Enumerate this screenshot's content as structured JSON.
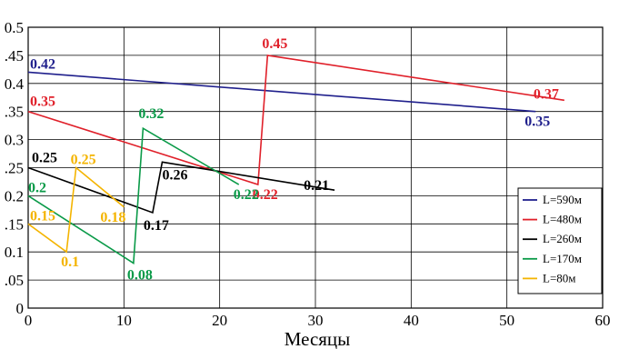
{
  "chart_data": {
    "type": "line",
    "title": "",
    "xlabel": "Месяцы",
    "ylabel": "",
    "xlim": [
      0,
      60
    ],
    "ylim": [
      0,
      0.5
    ],
    "x_ticks": [
      "0",
      "10",
      "20",
      "30",
      "40",
      "50",
      "60"
    ],
    "y_ticks": [
      "0",
      ".05",
      "0.1",
      ".15",
      "0.2",
      ".25",
      "0.3",
      ".35",
      "0.4",
      ".45",
      "0.5"
    ],
    "grid": true,
    "legend_position": "bottom-right",
    "series": [
      {
        "name": "L=590м",
        "color": "#1f1f8c",
        "points": [
          {
            "x": 0,
            "y": 0.42
          },
          {
            "x": 53,
            "y": 0.35
          }
        ],
        "labels": [
          {
            "text": "0.42",
            "x": 0,
            "y": 0.42
          },
          {
            "text": "0.35",
            "x": 53,
            "y": 0.35
          }
        ]
      },
      {
        "name": "L=480м",
        "color": "#e0202a",
        "points": [
          {
            "x": 0,
            "y": 0.35
          },
          {
            "x": 24,
            "y": 0.22
          },
          {
            "x": 25,
            "y": 0.45
          },
          {
            "x": 56,
            "y": 0.37
          }
        ],
        "labels": [
          {
            "text": "0.35",
            "x": 0,
            "y": 0.35
          },
          {
            "text": "0.22",
            "x": 24,
            "y": 0.22
          },
          {
            "text": "0.45",
            "x": 25,
            "y": 0.45
          },
          {
            "text": "0.37",
            "x": 56,
            "y": 0.37
          }
        ]
      },
      {
        "name": "L=260м",
        "color": "#000000",
        "points": [
          {
            "x": 0,
            "y": 0.25
          },
          {
            "x": 13,
            "y": 0.17
          },
          {
            "x": 14,
            "y": 0.26
          },
          {
            "x": 32,
            "y": 0.21
          }
        ],
        "labels": [
          {
            "text": "0.25",
            "x": 0,
            "y": 0.25
          },
          {
            "text": "0.17",
            "x": 13,
            "y": 0.17
          },
          {
            "text": "0.26",
            "x": 14,
            "y": 0.26
          },
          {
            "text": "0.21",
            "x": 32,
            "y": 0.21
          }
        ]
      },
      {
        "name": "L=170м",
        "color": "#0a9a48",
        "points": [
          {
            "x": 0,
            "y": 0.2
          },
          {
            "x": 11,
            "y": 0.08
          },
          {
            "x": 12,
            "y": 0.32
          },
          {
            "x": 22,
            "y": 0.22
          }
        ],
        "labels": [
          {
            "text": "0.2",
            "x": 0,
            "y": 0.2
          },
          {
            "text": "0.08",
            "x": 11,
            "y": 0.08
          },
          {
            "text": "0.32",
            "x": 12,
            "y": 0.32
          },
          {
            "text": "0.22",
            "x": 22,
            "y": 0.22
          }
        ]
      },
      {
        "name": "L=80м",
        "color": "#f4b400",
        "points": [
          {
            "x": 0,
            "y": 0.15
          },
          {
            "x": 4,
            "y": 0.1
          },
          {
            "x": 5,
            "y": 0.25
          },
          {
            "x": 10,
            "y": 0.18
          }
        ],
        "labels": [
          {
            "text": "0.15",
            "x": 0,
            "y": 0.15
          },
          {
            "text": "0.1",
            "x": 4,
            "y": 0.1
          },
          {
            "text": "0.25",
            "x": 5,
            "y": 0.25
          },
          {
            "text": "0.18",
            "x": 10,
            "y": 0.18
          }
        ]
      }
    ]
  }
}
